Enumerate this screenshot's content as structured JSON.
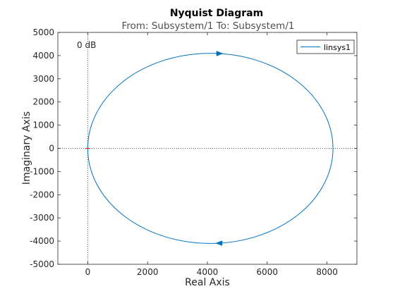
{
  "chart_data": {
    "type": "line",
    "title": "Nyquist Diagram",
    "subtitle": "From: Subsystem/1  To: Subsystem/1",
    "xlabel": "Real Axis",
    "ylabel": "Imaginary Axis",
    "xlim": [
      -1000,
      9000
    ],
    "ylim": [
      -5000,
      5000
    ],
    "xticks": [
      0,
      2000,
      4000,
      6000,
      8000
    ],
    "yticks": [
      -5000,
      -4000,
      -3000,
      -2000,
      -1000,
      0,
      1000,
      2000,
      3000,
      4000,
      5000
    ],
    "grid": false,
    "legend_placement": "top-right",
    "annotation": "0 dB",
    "series": [
      {
        "name": "linsys1",
        "color": "#0072bd",
        "curve": "circle",
        "center": [
          4100,
          0
        ],
        "radius_x": 4100,
        "radius_y": 4100,
        "arrows": [
          {
            "x": 4400,
            "y": 4090,
            "direction": "right"
          },
          {
            "x": 4400,
            "y": -4090,
            "direction": "left"
          }
        ]
      }
    ],
    "critical_point": [
      -1,
      0
    ],
    "critical_point_color": "#ff0000"
  }
}
